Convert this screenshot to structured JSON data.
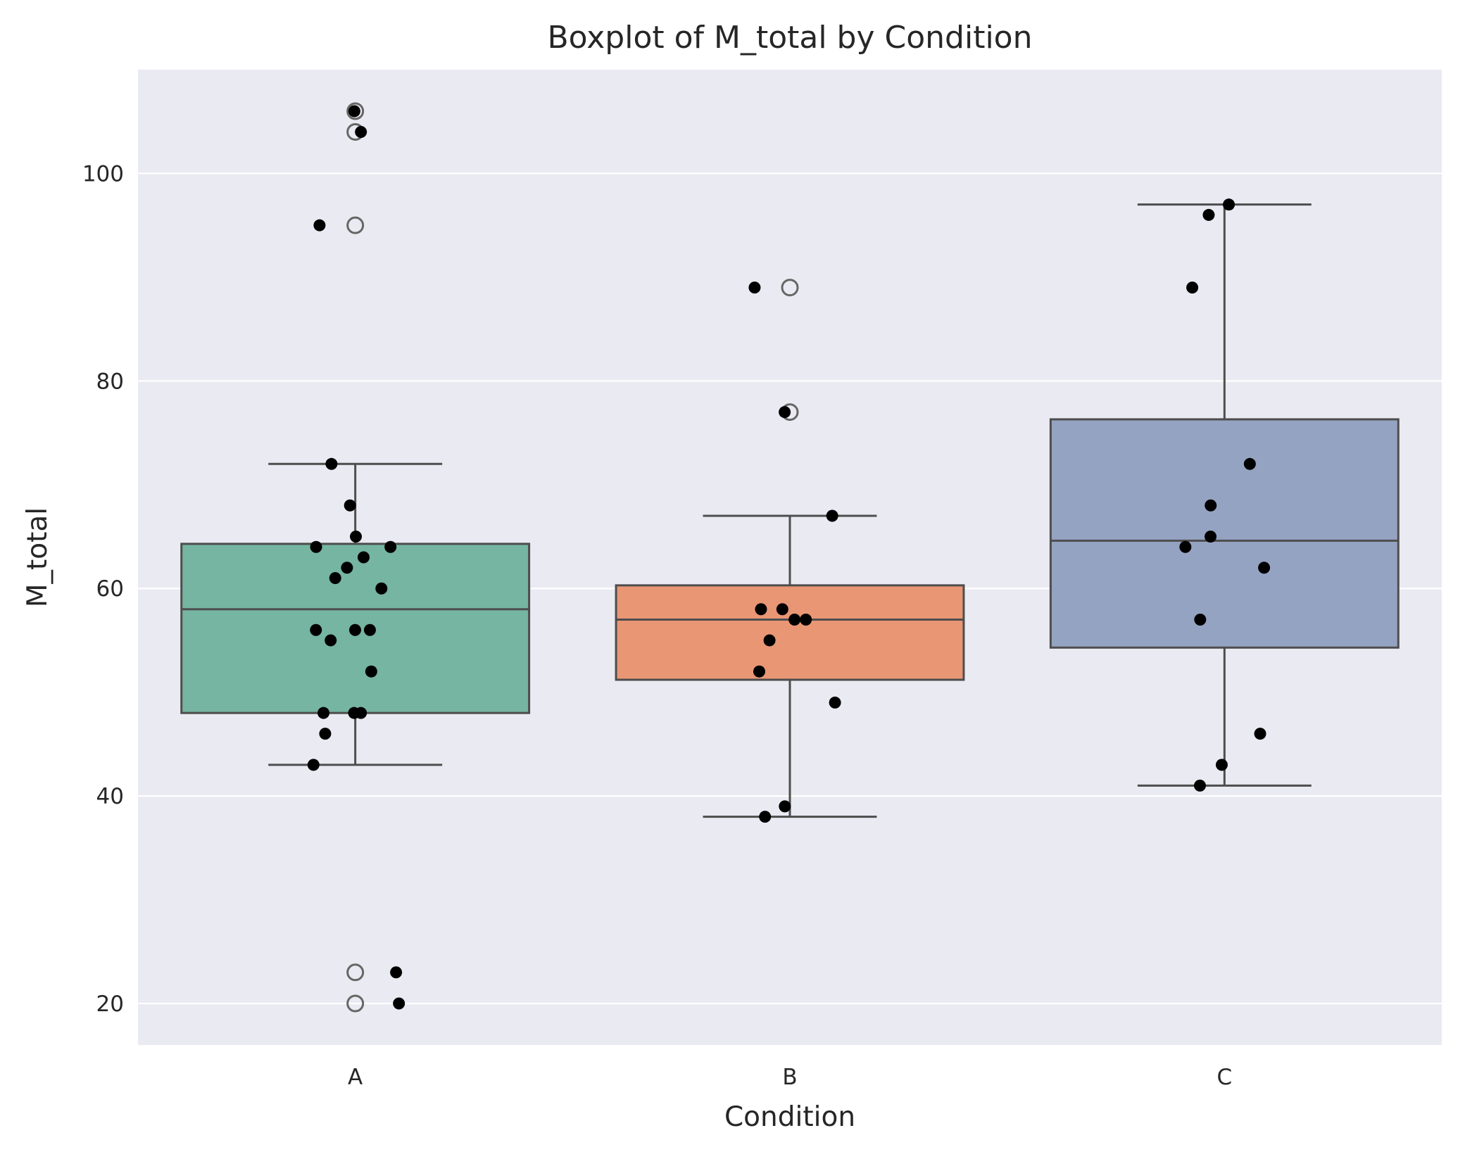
{
  "chart_data": {
    "type": "boxplot",
    "title": "Boxplot of M_total by Condition",
    "xlabel": "Condition",
    "ylabel": "M_total",
    "ylim": [
      16,
      110
    ],
    "yticks": [
      20,
      40,
      60,
      80,
      100
    ],
    "categories": [
      "A",
      "B",
      "C"
    ],
    "grid": true,
    "background_color": "#eaeaf2",
    "box_edge_color": "#4d4d4d",
    "outlier_color": "#666666",
    "point_color": "#000000",
    "boxes": [
      {
        "category": "A",
        "color": "#75b5a1",
        "q1": 48,
        "median": 58,
        "q3": 64.3,
        "whisker_low": 43,
        "whisker_high": 72,
        "outliers": [
          106,
          104,
          95,
          23,
          20
        ],
        "points": [
          106,
          104,
          95,
          72,
          68,
          65,
          64,
          64,
          63,
          62,
          61,
          60,
          56,
          56,
          56,
          55,
          52,
          48,
          48,
          48,
          46,
          43,
          23,
          20
        ]
      },
      {
        "category": "B",
        "color": "#e99675",
        "q1": 51.2,
        "median": 57,
        "q3": 60.3,
        "whisker_low": 38,
        "whisker_high": 67,
        "outliers": [
          89,
          77
        ],
        "points": [
          89,
          77,
          67,
          58,
          58,
          57,
          57,
          55,
          52,
          49,
          39,
          38
        ]
      },
      {
        "category": "C",
        "color": "#95a3c2",
        "q1": 54.3,
        "median": 64.6,
        "q3": 76.3,
        "whisker_low": 41,
        "whisker_high": 97,
        "outliers": [],
        "points": [
          97,
          96,
          89,
          72,
          68,
          65,
          64,
          62,
          57,
          46,
          43,
          41
        ]
      }
    ]
  }
}
